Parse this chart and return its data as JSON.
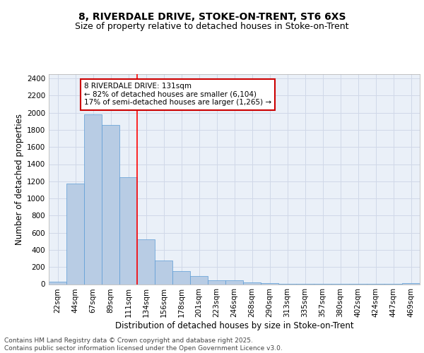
{
  "title": "8, RIVERDALE DRIVE, STOKE-ON-TRENT, ST6 6XS",
  "subtitle": "Size of property relative to detached houses in Stoke-on-Trent",
  "xlabel": "Distribution of detached houses by size in Stoke-on-Trent",
  "ylabel": "Number of detached properties",
  "bin_labels": [
    "22sqm",
    "44sqm",
    "67sqm",
    "89sqm",
    "111sqm",
    "134sqm",
    "156sqm",
    "178sqm",
    "201sqm",
    "223sqm",
    "246sqm",
    "268sqm",
    "290sqm",
    "313sqm",
    "335sqm",
    "357sqm",
    "380sqm",
    "402sqm",
    "424sqm",
    "447sqm",
    "469sqm"
  ],
  "bar_values": [
    25,
    1170,
    1980,
    1860,
    1250,
    520,
    275,
    155,
    95,
    45,
    45,
    20,
    15,
    5,
    5,
    3,
    2,
    2,
    1,
    1,
    15
  ],
  "bar_color": "#b8cce4",
  "bar_edge_color": "#5b9bd5",
  "grid_color": "#d0d8e8",
  "background_color": "#eaf0f8",
  "annotation_text": "8 RIVERDALE DRIVE: 131sqm\n← 82% of detached houses are smaller (6,104)\n17% of semi-detached houses are larger (1,265) →",
  "annotation_box_color": "#ffffff",
  "annotation_box_edge": "#cc0000",
  "ylim": [
    0,
    2450
  ],
  "yticks": [
    0,
    200,
    400,
    600,
    800,
    1000,
    1200,
    1400,
    1600,
    1800,
    2000,
    2200,
    2400
  ],
  "footer_text": "Contains HM Land Registry data © Crown copyright and database right 2025.\nContains public sector information licensed under the Open Government Licence v3.0.",
  "title_fontsize": 10,
  "subtitle_fontsize": 9,
  "axis_label_fontsize": 8.5,
  "tick_fontsize": 7.5,
  "annotation_fontsize": 7.5,
  "footer_fontsize": 6.5
}
